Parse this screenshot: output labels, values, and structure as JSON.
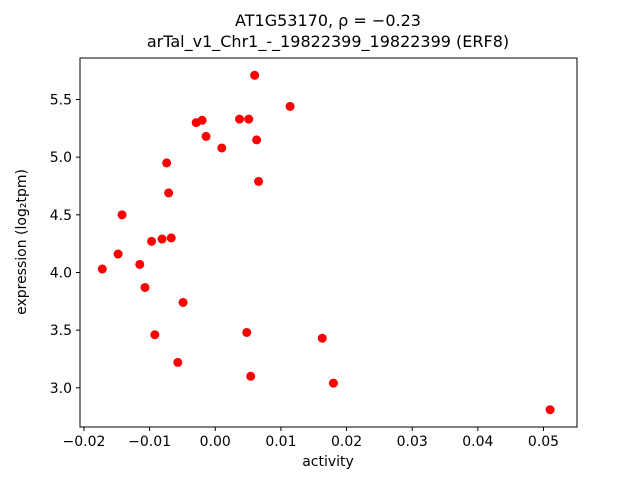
{
  "chart_data": {
    "type": "scatter",
    "title": "AT1G53170, ρ = −0.23",
    "subtitle": "arTal_v1_Chr1_-_19822399_19822399 (ERF8)",
    "xlabel": "activity",
    "ylabel": "expression (log₂tpm)",
    "xlim": [
      -0.0206,
      0.0551
    ],
    "ylim": [
      2.66,
      5.86
    ],
    "xticks": [
      -0.02,
      -0.01,
      0.0,
      0.01,
      0.02,
      0.03,
      0.04,
      0.05
    ],
    "xtick_labels": [
      "−0.02",
      "−0.01",
      "0.00",
      "0.01",
      "0.02",
      "0.03",
      "0.04",
      "0.05"
    ],
    "yticks": [
      3.0,
      3.5,
      4.0,
      4.5,
      5.0,
      5.5
    ],
    "ytick_labels": [
      "3.0",
      "3.5",
      "4.0",
      "4.5",
      "5.0",
      "5.5"
    ],
    "marker_color": "#ff0000",
    "grid": false,
    "legend": "none",
    "points": [
      [
        -0.0172,
        4.03
      ],
      [
        -0.0148,
        4.16
      ],
      [
        -0.0142,
        4.5
      ],
      [
        -0.0115,
        4.07
      ],
      [
        -0.0107,
        3.87
      ],
      [
        -0.0097,
        4.27
      ],
      [
        -0.0092,
        3.46
      ],
      [
        -0.0081,
        4.29
      ],
      [
        -0.0074,
        4.95
      ],
      [
        -0.0071,
        4.69
      ],
      [
        -0.0067,
        4.3
      ],
      [
        -0.0057,
        3.22
      ],
      [
        -0.0049,
        3.74
      ],
      [
        -0.0029,
        5.3
      ],
      [
        -0.002,
        5.32
      ],
      [
        -0.0014,
        5.18
      ],
      [
        0.001,
        5.08
      ],
      [
        0.0037,
        5.33
      ],
      [
        0.0048,
        3.48
      ],
      [
        0.0051,
        5.33
      ],
      [
        0.0054,
        3.1
      ],
      [
        0.006,
        5.71
      ],
      [
        0.0063,
        5.15
      ],
      [
        0.0066,
        4.79
      ],
      [
        0.0114,
        5.44
      ],
      [
        0.0163,
        3.43
      ],
      [
        0.018,
        3.04
      ],
      [
        0.051,
        2.81
      ]
    ]
  }
}
